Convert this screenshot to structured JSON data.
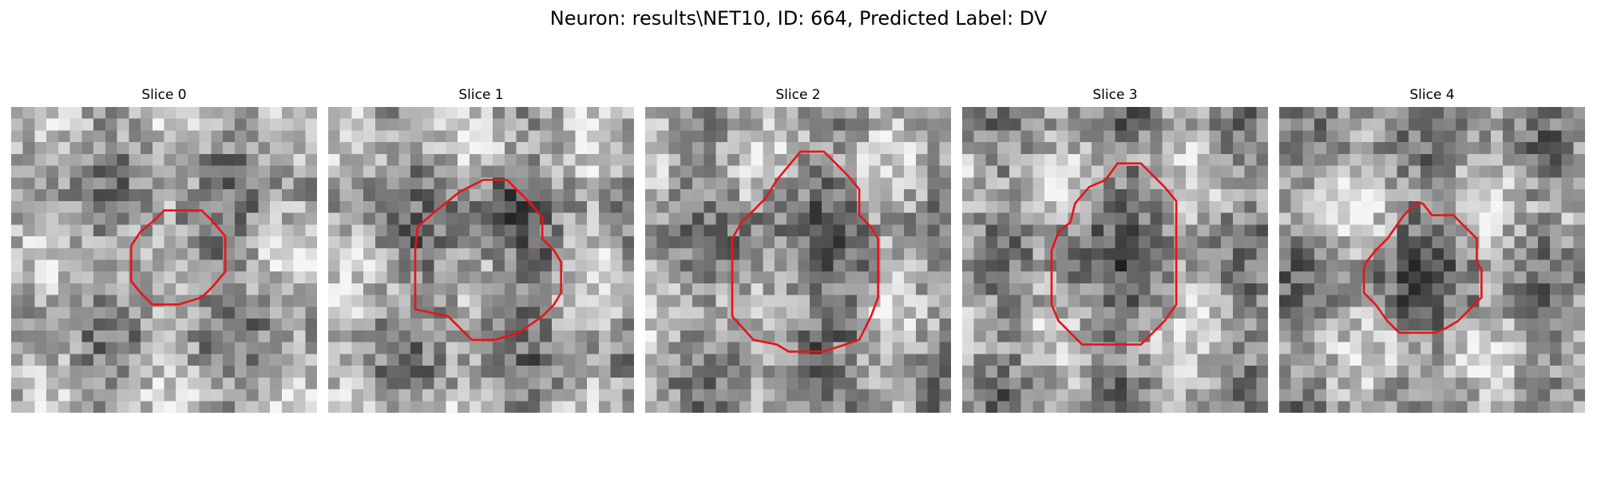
{
  "figure": {
    "title": "Neuron: results\\NET10, ID: 664, Predicted Label: DV"
  },
  "colors": {
    "background": "#ffffff",
    "contour": "#e8141b",
    "text": "#000000"
  },
  "panels": [
    {
      "title": "Slice 0",
      "contour": [
        [
          14.2,
          8.8
        ],
        [
          16.2,
          8.8
        ],
        [
          17.2,
          9.8
        ],
        [
          18.2,
          11.0
        ],
        [
          18.2,
          14.0
        ],
        [
          17.2,
          15.2
        ],
        [
          16.2,
          16.2
        ],
        [
          14.2,
          16.8
        ],
        [
          12.0,
          16.8
        ],
        [
          11.0,
          15.8
        ],
        [
          10.2,
          14.8
        ],
        [
          10.2,
          13.0
        ],
        [
          10.2,
          11.8
        ],
        [
          11.0,
          10.6
        ],
        [
          12.2,
          9.6
        ],
        [
          13.0,
          8.8
        ]
      ],
      "seed": 11
    },
    {
      "title": "Slice 1",
      "contour": [
        [
          13.2,
          6.2
        ],
        [
          15.2,
          6.2
        ],
        [
          16.2,
          7.2
        ],
        [
          17.2,
          8.2
        ],
        [
          18.2,
          9.4
        ],
        [
          18.2,
          11.2
        ],
        [
          19.2,
          12.2
        ],
        [
          19.8,
          13.2
        ],
        [
          19.8,
          15.8
        ],
        [
          19.2,
          16.8
        ],
        [
          18.2,
          17.8
        ],
        [
          16.2,
          19.2
        ],
        [
          14.2,
          19.8
        ],
        [
          12.2,
          19.8
        ],
        [
          11.2,
          18.8
        ],
        [
          10.2,
          17.8
        ],
        [
          7.4,
          17.2
        ],
        [
          7.4,
          12.2
        ],
        [
          7.6,
          10.2
        ],
        [
          9.2,
          8.8
        ],
        [
          11.2,
          7.2
        ]
      ],
      "seed": 22
    },
    {
      "title": "Slice 2",
      "contour": [
        [
          13.2,
          3.8
        ],
        [
          15.2,
          3.8
        ],
        [
          16.2,
          4.8
        ],
        [
          17.2,
          5.8
        ],
        [
          18.2,
          7.0
        ],
        [
          18.2,
          9.2
        ],
        [
          19.2,
          10.2
        ],
        [
          19.8,
          11.2
        ],
        [
          19.8,
          16.2
        ],
        [
          19.2,
          17.8
        ],
        [
          18.2,
          19.8
        ],
        [
          15.2,
          20.8
        ],
        [
          12.2,
          20.8
        ],
        [
          11.2,
          20.2
        ],
        [
          9.2,
          19.8
        ],
        [
          7.4,
          17.8
        ],
        [
          7.4,
          11.2
        ],
        [
          8.2,
          9.8
        ],
        [
          9.2,
          8.8
        ],
        [
          10.2,
          7.8
        ],
        [
          11.2,
          6.2
        ],
        [
          12.2,
          5.0
        ]
      ],
      "seed": 33
    },
    {
      "title": "Slice 3",
      "contour": [
        [
          13.2,
          4.8
        ],
        [
          15.2,
          4.8
        ],
        [
          16.2,
          5.8
        ],
        [
          17.2,
          6.8
        ],
        [
          18.2,
          8.0
        ],
        [
          18.2,
          10.2
        ],
        [
          18.2,
          13.2
        ],
        [
          18.2,
          16.8
        ],
        [
          17.2,
          18.2
        ],
        [
          16.2,
          19.2
        ],
        [
          15.2,
          20.2
        ],
        [
          10.2,
          20.2
        ],
        [
          9.2,
          19.2
        ],
        [
          8.2,
          18.2
        ],
        [
          7.6,
          16.8
        ],
        [
          7.6,
          12.2
        ],
        [
          8.2,
          10.6
        ],
        [
          9.2,
          9.8
        ],
        [
          9.6,
          8.2
        ],
        [
          10.8,
          6.8
        ],
        [
          12.2,
          6.2
        ]
      ],
      "seed": 44
    },
    {
      "title": "Slice 4",
      "contour": [
        [
          11.6,
          8.2
        ],
        [
          12.2,
          8.2
        ],
        [
          13.0,
          9.2
        ],
        [
          14.8,
          9.2
        ],
        [
          15.8,
          10.2
        ],
        [
          16.8,
          11.2
        ],
        [
          16.8,
          13.2
        ],
        [
          17.2,
          13.8
        ],
        [
          17.2,
          16.2
        ],
        [
          16.2,
          17.2
        ],
        [
          15.2,
          18.2
        ],
        [
          14.2,
          18.8
        ],
        [
          13.2,
          19.2
        ],
        [
          12.2,
          19.2
        ],
        [
          10.2,
          19.2
        ],
        [
          9.2,
          18.2
        ],
        [
          8.2,
          16.8
        ],
        [
          7.2,
          15.8
        ],
        [
          7.2,
          13.8
        ],
        [
          7.4,
          13.2
        ],
        [
          8.2,
          12.2
        ],
        [
          9.2,
          11.2
        ],
        [
          10.6,
          9.2
        ]
      ],
      "seed": 55
    }
  ]
}
